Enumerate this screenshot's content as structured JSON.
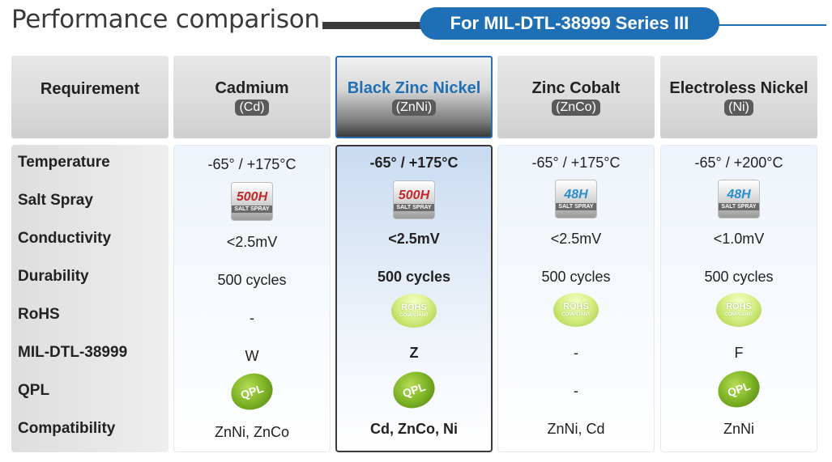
{
  "title": "Performance comparison",
  "series": "For MIL-DTL-38999 Series III",
  "header": {
    "requirement": "Requirement",
    "columns": [
      {
        "name": "Cadmium",
        "abbr": "(Cd)"
      },
      {
        "name": "Black Zinc Nickel",
        "abbr": "(ZnNi)"
      },
      {
        "name": "Zinc Cobalt",
        "abbr": "(ZnCo)"
      },
      {
        "name": "Electroless Nickel",
        "abbr": "(Ni)"
      }
    ]
  },
  "rows": [
    "Temperature",
    "Salt Spray",
    "Conductivity",
    "Durability",
    "RoHS",
    "MIL-DTL-38999",
    "QPL",
    "Compatibility"
  ],
  "values": [
    {
      "temperature": "-65° / +175°C",
      "salt_spray": "500H",
      "conductivity": "<2.5mV",
      "durability": "500 cycles",
      "rohs": "-",
      "mil": "W",
      "qpl": "QPL",
      "compatibility": "ZnNi, ZnCo"
    },
    {
      "temperature": "-65° / +175°C",
      "salt_spray": "500H",
      "conductivity": "<2.5mV",
      "durability": "500 cycles",
      "rohs": "ROHS",
      "mil": "Z",
      "qpl": "QPL",
      "compatibility": "Cd, ZnCo, Ni"
    },
    {
      "temperature": "-65° / +175°C",
      "salt_spray": "48H",
      "conductivity": "<2.5mV",
      "durability": "500 cycles",
      "rohs": "ROHS",
      "mil": "-",
      "qpl": "-",
      "compatibility": "ZnNi, Cd"
    },
    {
      "temperature": "-65° / +200°C",
      "salt_spray": "48H",
      "conductivity": "<1.0mV",
      "durability": "500 cycles",
      "rohs": "ROHS",
      "mil": "F",
      "qpl": "QPL",
      "compatibility": "ZnNi"
    }
  ],
  "badges": {
    "salt_spray_caption": "SALT SPRAY",
    "rohs_caption": "COMPLIANT"
  },
  "colors": {
    "accent": "#1e6fb5",
    "salt_high": "#c0282b",
    "salt_low": "#2a8fd0",
    "qpl_green": "#7fb526"
  }
}
